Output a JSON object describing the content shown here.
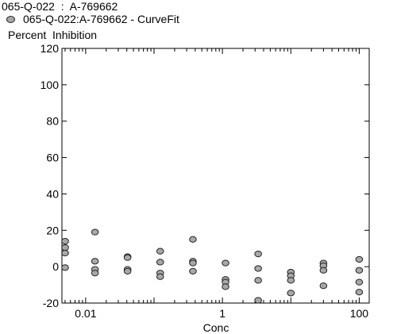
{
  "chart_data": {
    "type": "scatter",
    "title": "065-Q-022  :  A-769662",
    "legend": {
      "label": "065-Q-022:A-769662 - CurveFit",
      "placement": "top-left"
    },
    "xlabel": "Conc",
    "ylabel": "Percent  Inhibition",
    "xscale": "log",
    "xlim": [
      0.0045,
      140
    ],
    "ylim": [
      -20,
      120
    ],
    "xticks": [
      0.01,
      1,
      100
    ],
    "xtick_labels": [
      "0.01",
      "1",
      "100"
    ],
    "yticks": [
      -20,
      0,
      20,
      40,
      60,
      80,
      100,
      120
    ],
    "ytick_labels": [
      "-20",
      "0",
      "20",
      "40",
      "60",
      "80",
      "100",
      "120"
    ],
    "grid": false,
    "marker_color": "#a8a8a8",
    "marker_edge_color": "#222222",
    "series": [
      {
        "points": [
          {
            "x": 0.0046,
            "y": 14
          },
          {
            "x": 0.0046,
            "y": 10.5
          },
          {
            "x": 0.0046,
            "y": 7.5
          },
          {
            "x": 0.0046,
            "y": -0.5
          },
          {
            "x": 0.0137,
            "y": 19
          },
          {
            "x": 0.0137,
            "y": 3
          },
          {
            "x": 0.0137,
            "y": -1.5
          },
          {
            "x": 0.0137,
            "y": -3.5
          },
          {
            "x": 0.041,
            "y": 5.5
          },
          {
            "x": 0.041,
            "y": 5
          },
          {
            "x": 0.041,
            "y": -1.5
          },
          {
            "x": 0.041,
            "y": -2.5
          },
          {
            "x": 0.123,
            "y": 8.5
          },
          {
            "x": 0.123,
            "y": 2.5
          },
          {
            "x": 0.123,
            "y": -3.5
          },
          {
            "x": 0.123,
            "y": -5.5
          },
          {
            "x": 0.37,
            "y": 15
          },
          {
            "x": 0.37,
            "y": 3
          },
          {
            "x": 0.37,
            "y": 2
          },
          {
            "x": 0.37,
            "y": -2.5
          },
          {
            "x": 1.11,
            "y": 2
          },
          {
            "x": 1.11,
            "y": -7
          },
          {
            "x": 1.11,
            "y": -8.5
          },
          {
            "x": 1.11,
            "y": -11
          },
          {
            "x": 3.33,
            "y": 7
          },
          {
            "x": 3.33,
            "y": -1
          },
          {
            "x": 3.33,
            "y": -7.5
          },
          {
            "x": 3.33,
            "y": -18.5
          },
          {
            "x": 10,
            "y": -3
          },
          {
            "x": 10,
            "y": -5
          },
          {
            "x": 10,
            "y": -7.5
          },
          {
            "x": 10,
            "y": -14.5
          },
          {
            "x": 30,
            "y": 2
          },
          {
            "x": 30,
            "y": 0.5
          },
          {
            "x": 30,
            "y": -2
          },
          {
            "x": 30,
            "y": -10.5
          },
          {
            "x": 100,
            "y": 4
          },
          {
            "x": 100,
            "y": -2
          },
          {
            "x": 100,
            "y": -8.5
          },
          {
            "x": 100,
            "y": -14
          }
        ]
      }
    ]
  }
}
